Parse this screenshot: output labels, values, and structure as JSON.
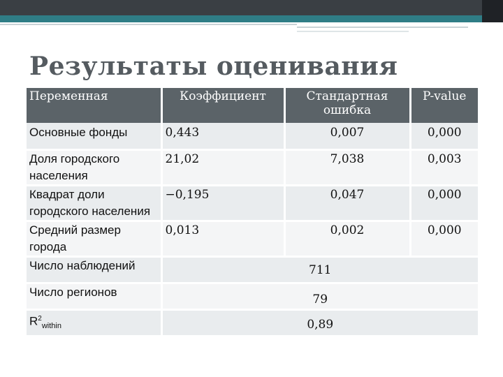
{
  "slide": {
    "title": "Результаты оценивания"
  },
  "table": {
    "headers": [
      "Переменная",
      "Коэффициент",
      "Стандартная ошибка",
      "P-value"
    ],
    "rows": [
      {
        "name": "Основные фонды",
        "coef": "0,443",
        "se": "0,007",
        "p": "0,000"
      },
      {
        "name": "Доля городского населения",
        "coef": "21,02",
        "se": "7,038",
        "p": "0,003"
      },
      {
        "name": "Квадрат доли городского населения",
        "coef": "−0,195",
        "se": "0,047",
        "p": "0,000"
      },
      {
        "name": "Средний размер города",
        "coef": "0,013",
        "se": "0,002",
        "p": "0,000"
      }
    ],
    "stats": [
      {
        "label": "Число наблюдений",
        "value": "711"
      },
      {
        "label": "Число регионов",
        "value": "79"
      },
      {
        "label_main": "R",
        "label_sup": "2",
        "label_sub": "within",
        "value": "0,89"
      }
    ]
  },
  "colors": {
    "header_bg": "#5b6368",
    "accent": "#2f7d86",
    "topbar": "#3a3f44",
    "row_bg": "#e9ecee"
  }
}
